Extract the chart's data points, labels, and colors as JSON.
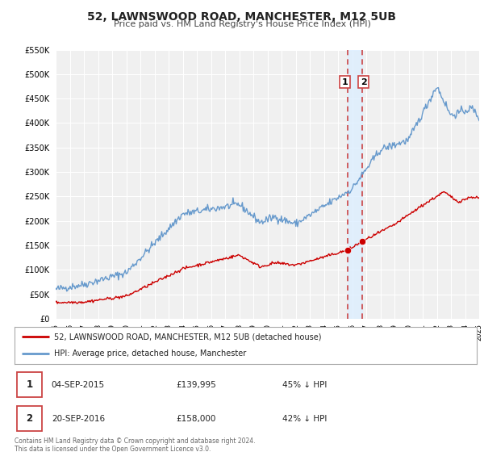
{
  "title": "52, LAWNSWOOD ROAD, MANCHESTER, M12 5UB",
  "subtitle": "Price paid vs. HM Land Registry's House Price Index (HPI)",
  "legend_line1": "52, LAWNSWOOD ROAD, MANCHESTER, M12 5UB (detached house)",
  "legend_line2": "HPI: Average price, detached house, Manchester",
  "sale1_date": "04-SEP-2015",
  "sale1_price": "£139,995",
  "sale1_pct": "45% ↓ HPI",
  "sale1_year": 2015.67,
  "sale1_value": 139995,
  "sale2_date": "20-SEP-2016",
  "sale2_price": "£158,000",
  "sale2_pct": "42% ↓ HPI",
  "sale2_year": 2016.72,
  "sale2_value": 158000,
  "red_color": "#cc0000",
  "blue_color": "#6699cc",
  "vline_color": "#cc4444",
  "vband_color": "#ddeeff",
  "background_color": "#f0f0f0",
  "footer": "Contains HM Land Registry data © Crown copyright and database right 2024.\nThis data is licensed under the Open Government Licence v3.0.",
  "ylim": [
    0,
    550000
  ],
  "xlim_start": 1995,
  "xlim_end": 2025
}
